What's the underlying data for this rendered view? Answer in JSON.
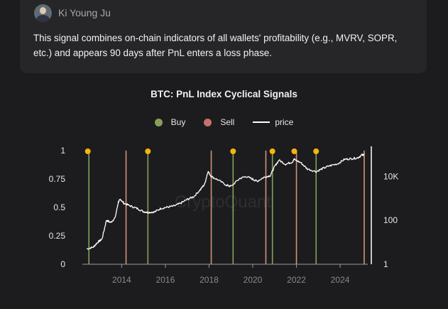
{
  "post": {
    "author": "Ki Young Ju",
    "text": "This signal combines on-chain indicators of all wallets' profitability (e.g., MVRV, SOPR, etc.) and appears 90 days after PnL enters a loss phase."
  },
  "colors": {
    "buy": "#86a05a",
    "sell": "#d5917a",
    "price": "#ffffff",
    "marker": "#f5b50c"
  },
  "chart_data": {
    "type": "line",
    "title": "BTC: PnL Index Cyclical Signals",
    "legend": [
      {
        "key": "buy",
        "label": "Buy"
      },
      {
        "key": "sell",
        "label": "Sell"
      },
      {
        "key": "price",
        "label": "price"
      }
    ],
    "watermark": "CryptoQuant",
    "x_range": [
      2012.2,
      2025.2
    ],
    "x_ticks": [
      2014,
      2016,
      2018,
      2020,
      2022,
      2024
    ],
    "y_left": {
      "ticks": [
        0,
        0.25,
        0.5,
        0.75,
        1
      ],
      "labels": [
        "0",
        "0.25",
        "0.5",
        "0.75",
        "1"
      ],
      "range": [
        0,
        1
      ]
    },
    "y_right": {
      "scale": "log",
      "ticks": [
        1,
        100,
        10000
      ],
      "labels": [
        "1",
        "100",
        "10K"
      ],
      "range": [
        1,
        150000
      ]
    },
    "buy_signals": [
      2012.5,
      2015.2,
      2019.1,
      2020.9,
      2022.9
    ],
    "sell_signals": [
      2014.2,
      2018.1,
      2020.6,
      2022.0,
      2025.1
    ],
    "markers": [
      2012.45,
      2015.2,
      2019.1,
      2020.9,
      2021.9,
      2022.9
    ],
    "price": {
      "x": [
        2012.4,
        2012.7,
        2012.9,
        2013.1,
        2013.3,
        2013.5,
        2013.7,
        2013.85,
        2013.95,
        2014.1,
        2014.4,
        2014.7,
        2015.0,
        2015.2,
        2015.5,
        2015.8,
        2016.1,
        2016.4,
        2016.7,
        2017.0,
        2017.3,
        2017.6,
        2017.8,
        2017.95,
        2018.1,
        2018.4,
        2018.8,
        2019.0,
        2019.4,
        2019.7,
        2020.0,
        2020.2,
        2020.5,
        2020.8,
        2021.0,
        2021.2,
        2021.5,
        2021.8,
        2021.9,
        2022.2,
        2022.5,
        2022.9,
        2023.2,
        2023.5,
        2023.9,
        2024.2,
        2024.5,
        2024.8,
        2025.0,
        2025.1
      ],
      "y": [
        5,
        6,
        10,
        14,
        100,
        80,
        130,
        700,
        900,
        600,
        450,
        350,
        250,
        230,
        240,
        350,
        400,
        450,
        600,
        900,
        1200,
        2500,
        4500,
        17000,
        10000,
        7000,
        4000,
        3500,
        8000,
        10000,
        7500,
        6000,
        9000,
        11000,
        28000,
        55000,
        36000,
        45000,
        60000,
        42000,
        22000,
        16500,
        23000,
        30000,
        38000,
        60000,
        64000,
        70000,
        95000,
        100000
      ]
    }
  }
}
